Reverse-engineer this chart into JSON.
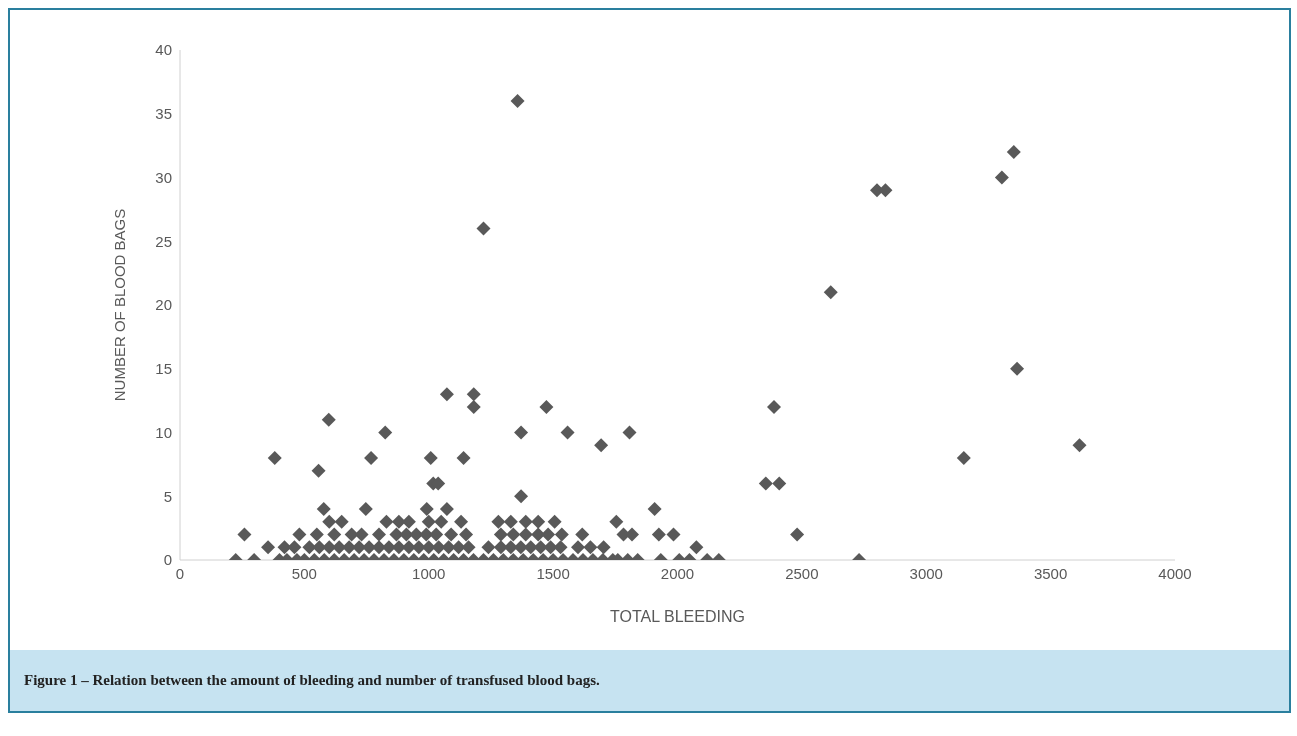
{
  "chart_data": {
    "type": "scatter",
    "xlabel": "TOTAL BLEEDING",
    "ylabel": "NUMBER OF BLOOD BAGS",
    "annotations": [
      "Figure 1 – Relation between the amount of bleeding and number of transfused blood bags."
    ],
    "xlim": [
      0,
      4000
    ],
    "xticks": [
      0,
      500,
      1000,
      1500,
      2000,
      2500,
      3000,
      3500,
      4000
    ],
    "ylim": [
      0,
      40
    ],
    "yticks": [
      0,
      5,
      10,
      15,
      20,
      25,
      30,
      35,
      40
    ],
    "grid": false,
    "legend": false,
    "marker": "diamond",
    "series": [
      {
        "color": "#595959",
        "x": [
          1357,
          1220,
          2616,
          2802,
          2836,
          3304,
          3352,
          3365,
          3616,
          3151,
          2730,
          2481,
          2355,
          2409,
          2388,
          1073,
          1181,
          1181,
          1473,
          598,
          825,
          1371,
          1558,
          1807,
          381,
          768,
          1008,
          1140,
          1693,
          557,
          1018,
          1038,
          1371,
          1908,
          578,
          747,
          992,
          1073,
          1506,
          1754,
          224,
          298,
          400,
          430,
          470,
          500,
          540,
          580,
          620,
          660,
          700,
          740,
          780,
          820,
          860,
          900,
          940,
          980,
          1020,
          1060,
          1100,
          1140,
          1180,
          1220,
          1260,
          1300,
          1340,
          1380,
          1420,
          1460,
          1500,
          1540,
          1580,
          1620,
          1660,
          1700,
          1740,
          1760,
          1800,
          1840,
          1933,
          2007,
          2048,
          2119,
          2166,
          354,
          420,
          460,
          520,
          560,
          600,
          640,
          680,
          720,
          760,
          800,
          840,
          880,
          920,
          960,
          1000,
          1040,
          1080,
          1120,
          1160,
          1240,
          1290,
          1330,
          1370,
          1410,
          1450,
          1490,
          1530,
          1600,
          1650,
          1703,
          2076,
          259,
          480,
          550,
          620,
          690,
          730,
          800,
          870,
          910,
          950,
          990,
          1030,
          1090,
          1150,
          1290,
          1340,
          1390,
          1440,
          1480,
          1535,
          1617,
          1783,
          1817,
          1925,
          1984,
          600,
          650,
          830,
          880,
          920,
          1000,
          1050,
          1130,
          1280,
          1330,
          1390,
          1440
        ],
        "values": [
          36,
          26,
          21,
          29,
          29,
          30,
          32,
          15,
          9,
          8,
          0,
          2,
          6,
          6,
          12,
          13,
          13,
          12,
          12,
          11,
          10,
          10,
          10,
          10,
          8,
          8,
          8,
          8,
          9,
          7,
          6,
          6,
          5,
          4,
          4,
          4,
          4,
          4,
          3,
          3,
          0,
          0,
          0,
          0,
          0,
          0,
          0,
          0,
          0,
          0,
          0,
          0,
          0,
          0,
          0,
          0,
          0,
          0,
          0,
          0,
          0,
          0,
          0,
          0,
          0,
          0,
          0,
          0,
          0,
          0,
          0,
          0,
          0,
          0,
          0,
          0,
          0,
          0,
          0,
          0,
          0,
          0,
          0,
          0,
          0,
          1,
          1,
          1,
          1,
          1,
          1,
          1,
          1,
          1,
          1,
          1,
          1,
          1,
          1,
          1,
          1,
          1,
          1,
          1,
          1,
          1,
          1,
          1,
          1,
          1,
          1,
          1,
          1,
          1,
          1,
          1,
          1,
          2,
          2,
          2,
          2,
          2,
          2,
          2,
          2,
          2,
          2,
          2,
          2,
          2,
          2,
          2,
          2,
          2,
          2,
          2,
          2,
          2,
          2,
          2,
          2,
          2,
          3,
          3,
          3,
          3,
          3,
          3,
          3,
          3,
          3,
          3,
          3,
          3
        ]
      }
    ]
  }
}
